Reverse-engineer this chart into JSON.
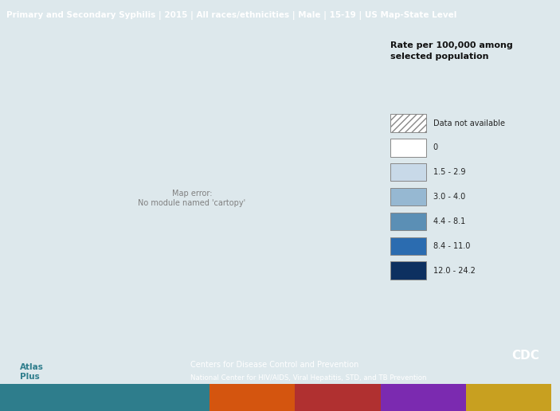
{
  "title": "Primary and Secondary Syphilis | 2015 | All races/ethnicities | Male | 15-19 | US Map-State Level",
  "title_bg_color": "#2e7d8c",
  "title_text_color": "#ffffff",
  "main_bg_color": "#dde8ec",
  "legend_title": "Rate per 100,000 among\nselected population",
  "legend_categories": [
    {
      "label": "Data not available",
      "color": "#ffffff",
      "hatch": "////"
    },
    {
      "label": "0",
      "color": "#ffffff",
      "hatch": ""
    },
    {
      "label": "1.5 - 2.9",
      "color": "#c8d9e8",
      "hatch": ""
    },
    {
      "label": "3.0 - 4.0",
      "color": "#96b8d2",
      "hatch": ""
    },
    {
      "label": "4.4 - 8.1",
      "color": "#5b8fb5",
      "hatch": ""
    },
    {
      "label": "8.4 - 11.0",
      "color": "#2b6cb0",
      "hatch": ""
    },
    {
      "label": "12.0 - 24.2",
      "color": "#0d3060",
      "hatch": ""
    }
  ],
  "footer_bg_color": "#2e7d8c",
  "footer_text1": "Centers for Disease Control and Prevention",
  "footer_text2": "National Center for HIV/AIDS, Viral Hepatitis, STD, and TB Prevention",
  "bottom_stripe_colors": [
    "#2e7d8c",
    "#2e7d8c",
    "#d4550f",
    "#b03030",
    "#7b2ab0",
    "#d4940a",
    "#c8a020"
  ],
  "state_colors": {
    "Alabama": "#2b6cb0",
    "Alaska": "#dde8ec",
    "Arizona": "#5b8fb5",
    "Arkansas": "#5b8fb5",
    "California": "#2b6cb0",
    "Colorado": "#c8d9e8",
    "Connecticut": "#c8d9e8",
    "Delaware": "#c8d9e8",
    "District of Columbia": "#0d3060",
    "Florida": "#2b6cb0",
    "Georgia": "#0d3060",
    "Hawaii": "#5b8fb5",
    "Idaho": "#c8d9e8",
    "Illinois": "#5b8fb5",
    "Indiana": "#c8d9e8",
    "Iowa": "#c8d9e8",
    "Kansas": "#c8d9e8",
    "Kentucky": "#5b8fb5",
    "Louisiana": "#0d3060",
    "Maine": "#c8d9e8",
    "Maryland": "#5b8fb5",
    "Massachusetts": "#c8d9e8",
    "Michigan": "#c8d9e8",
    "Minnesota": "#c8d9e8",
    "Mississippi": "#0d3060",
    "Missouri": "#5b8fb5",
    "Montana": "#c8d9e8",
    "Nebraska": "#c8d9e8",
    "Nevada": "#5b8fb5",
    "New Hampshire": "#ffffff",
    "New Jersey": "#c8d9e8",
    "New Mexico": "#5b8fb5",
    "New York": "#2b6cb0",
    "North Carolina": "#0d3060",
    "North Dakota": "#ffffff",
    "Ohio": "#c8d9e8",
    "Oklahoma": "#5b8fb5",
    "Oregon": "#2b6cb0",
    "Pennsylvania": "#c8d9e8",
    "Rhode Island": "#c8d9e8",
    "South Carolina": "#2b6cb0",
    "South Dakota": "#c8d9e8",
    "Tennessee": "#2b6cb0",
    "Texas": "#2b6cb0",
    "Utah": "#c8d9e8",
    "Vermont": "#ffffff",
    "Virginia": "#5b8fb5",
    "Washington": "#2b6cb0",
    "West Virginia": "#c8d9e8",
    "Wisconsin": "#c8d9e8",
    "Wyoming": "#ffffff"
  },
  "pr_color": "#0d3060"
}
